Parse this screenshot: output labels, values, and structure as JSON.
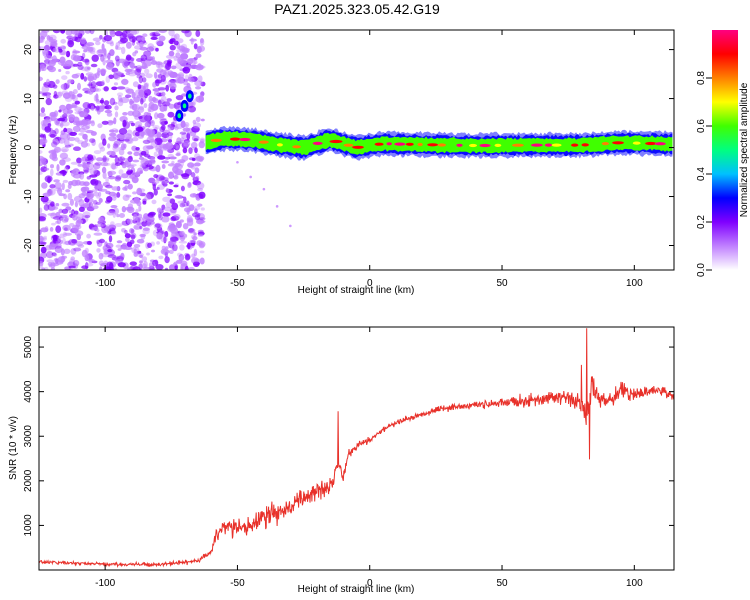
{
  "title": "PAZ1.2025.323.05.42.G19",
  "colors": {
    "snr_line": "#e8312a",
    "cmap": [
      "#ffffff",
      "#c080ff",
      "#8000ff",
      "#0000ff",
      "#00c0ff",
      "#00ff80",
      "#40ff00",
      "#ffff00",
      "#ff8000",
      "#ff0000",
      "#ff0080"
    ]
  },
  "chart_data": [
    {
      "type": "heatmap",
      "title": "",
      "xlabel": "Height of straight line (km)",
      "ylabel": "Frequency (Hz)",
      "xlim": [
        -125,
        115
      ],
      "ylim": [
        -25,
        24
      ],
      "xticks": [
        -100,
        -50,
        0,
        50,
        100
      ],
      "xtick_labels": [
        "-100",
        "-50",
        "0",
        "50",
        "100"
      ],
      "yticks": [
        -20,
        -10,
        0,
        10,
        20
      ],
      "ytick_labels": [
        "-20",
        "-10",
        "0",
        "10",
        "20"
      ],
      "colorbar": {
        "label": "Normalized spectral amplitude",
        "range": [
          0,
          1
        ],
        "ticks": [
          0.0,
          0.2,
          0.4,
          0.6,
          0.8
        ],
        "tick_labels": [
          "0.0",
          "0.2",
          "0.4",
          "0.6",
          "0.8"
        ]
      },
      "features": {
        "noise_region_x": [
          -125,
          -62
        ],
        "noise_amplitude_range": [
          0.05,
          0.25
        ],
        "signal_line_start_x": -62,
        "signal_line_center_hz": [
          [
            -62,
            1.0
          ],
          [
            -55,
            1.8
          ],
          [
            -45,
            1.6
          ],
          [
            -35,
            0.6
          ],
          [
            -25,
            0.0
          ],
          [
            -15,
            1.6
          ],
          [
            -5,
            0.0
          ],
          [
            5,
            0.8
          ],
          [
            20,
            0.6
          ],
          [
            40,
            0.4
          ],
          [
            60,
            0.5
          ],
          [
            80,
            0.5
          ],
          [
            95,
            1.0
          ],
          [
            115,
            0.7
          ]
        ],
        "signal_peak_amplitude": 0.9,
        "early_signal_points": [
          [
            -70,
            8.5
          ],
          [
            -72,
            6.5
          ],
          [
            -68,
            10.5
          ]
        ],
        "diagonal_trail": [
          [
            -50,
            -3
          ],
          [
            -45,
            -6
          ],
          [
            -40,
            -8.5
          ],
          [
            -35,
            -12
          ],
          [
            -30,
            -16
          ]
        ]
      }
    },
    {
      "type": "line",
      "title": "",
      "xlabel": "Height of straight line (km)",
      "ylabel": "SNR (10 * v/v)",
      "xlim": [
        -125,
        115
      ],
      "ylim": [
        0,
        5450
      ],
      "xticks": [
        -100,
        -50,
        0,
        50,
        100
      ],
      "xtick_labels": [
        "-100",
        "-50",
        "0",
        "50",
        "100"
      ],
      "yticks": [
        1000,
        2000,
        3000,
        4000,
        5000
      ],
      "ytick_labels": [
        "1000",
        "2000",
        "3000",
        "4000",
        "5000"
      ],
      "series": [
        {
          "name": "SNR",
          "x": [
            -125,
            -100,
            -80,
            -65,
            -60,
            -58,
            -55,
            -50,
            -45,
            -40,
            -35,
            -30,
            -25,
            -20,
            -15,
            -12,
            -10,
            -8,
            -5,
            0,
            5,
            10,
            15,
            20,
            25,
            30,
            40,
            50,
            60,
            65,
            70,
            75,
            80,
            82,
            84,
            86,
            90,
            95,
            100,
            105,
            110,
            115
          ],
          "values": [
            180,
            130,
            120,
            200,
            400,
            800,
            1000,
            900,
            1000,
            1200,
            1300,
            1400,
            1600,
            1800,
            1900,
            2400,
            2100,
            2600,
            2800,
            2900,
            3150,
            3300,
            3400,
            3500,
            3600,
            3650,
            3700,
            3750,
            3800,
            3800,
            3900,
            3850,
            3700,
            3400,
            4200,
            3900,
            3800,
            4000,
            3950,
            4000,
            4050,
            3850
          ],
          "noise_amplitude": [
            45,
            45,
            45,
            60,
            90,
            180,
            260,
            240,
            260,
            280,
            290,
            290,
            280,
            260,
            240,
            200,
            160,
            140,
            110,
            90,
            80,
            80,
            80,
            80,
            90,
            100,
            100,
            110,
            180,
            150,
            200,
            220,
            260,
            420,
            320,
            250,
            200,
            220,
            190,
            160,
            140,
            120
          ],
          "spikes": [
            [
              -12,
              3560
            ],
            [
              82,
              5420
            ],
            [
              83,
              2480
            ],
            [
              80,
              4600
            ]
          ]
        }
      ]
    }
  ]
}
